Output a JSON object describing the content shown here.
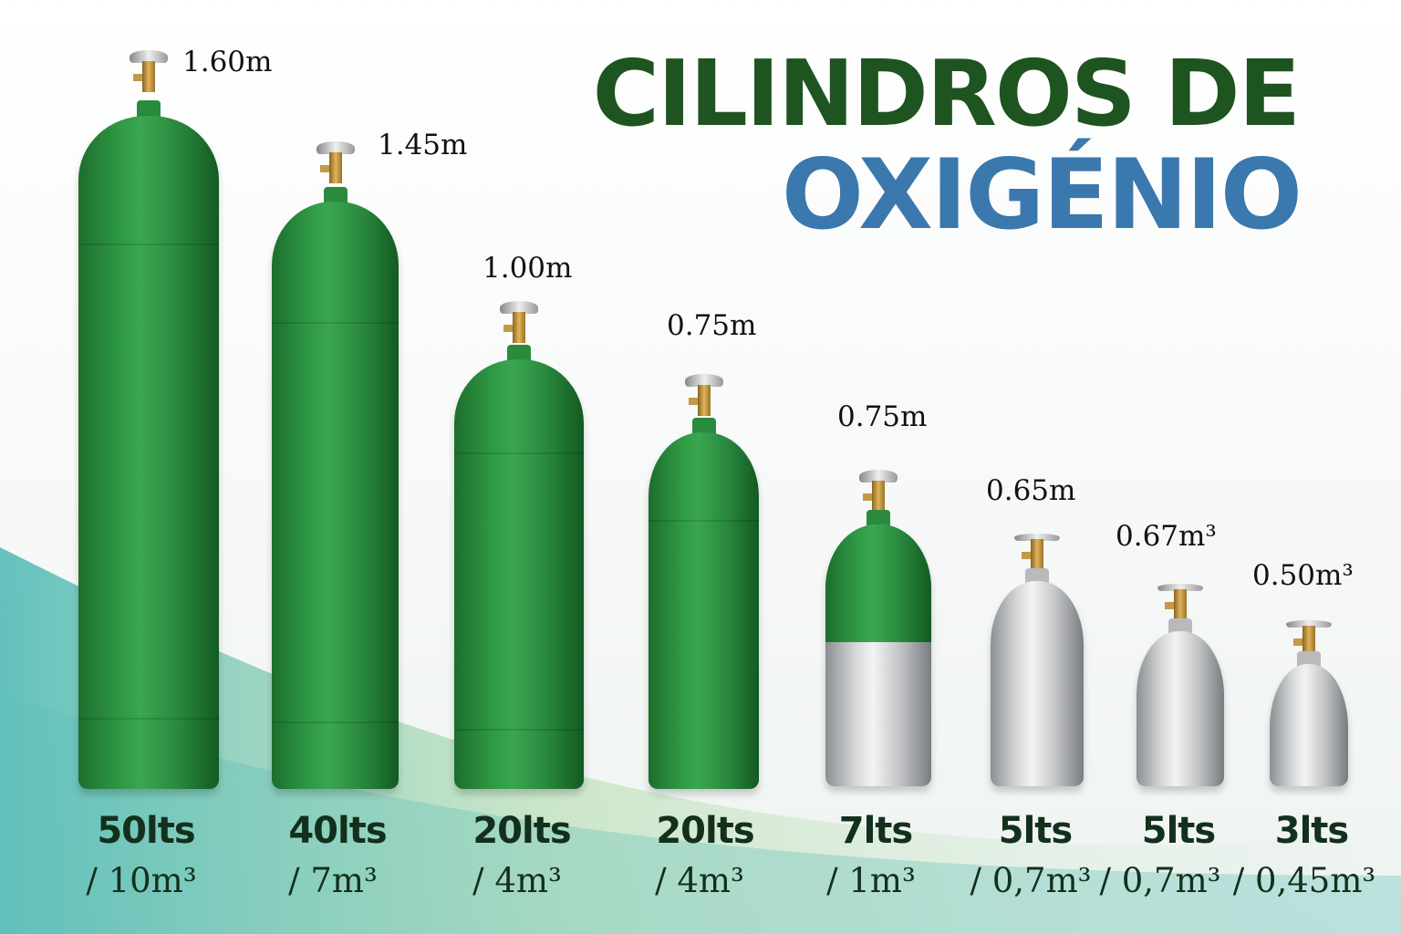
{
  "title": {
    "line1": "CILINDROS DE",
    "line2": "OXIGÉNIO"
  },
  "colors": {
    "title_green": "#1e5420",
    "title_blue": "#3a78ad",
    "cylinder_green": "#2f9a45",
    "cylinder_silver": "#d9dbdc"
  },
  "cylinders": [
    {
      "height": "1.60m",
      "capacity": "50lts",
      "volume": "/ 10m³",
      "finish": "green"
    },
    {
      "height": "1.45m",
      "capacity": "40lts",
      "volume": "/ 7m³",
      "finish": "green"
    },
    {
      "height": "1.00m",
      "capacity": "20lts",
      "volume": "/ 4m³",
      "finish": "green"
    },
    {
      "height": "0.75m",
      "capacity": "20lts",
      "volume": "/ 4m³",
      "finish": "green"
    },
    {
      "height": "0.75m",
      "capacity": "7lts",
      "volume": "/ 1m³",
      "finish": "green-silver"
    },
    {
      "height": "0.65m",
      "capacity": "5lts",
      "volume": "/ 0,7m³",
      "finish": "silver"
    },
    {
      "height": "0.67m³",
      "capacity": "5lts",
      "volume": "/ 0,7m³",
      "finish": "silver"
    },
    {
      "height": "0.50m³",
      "capacity": "3lts",
      "volume": "/ 0,45m³",
      "finish": "silver"
    }
  ]
}
